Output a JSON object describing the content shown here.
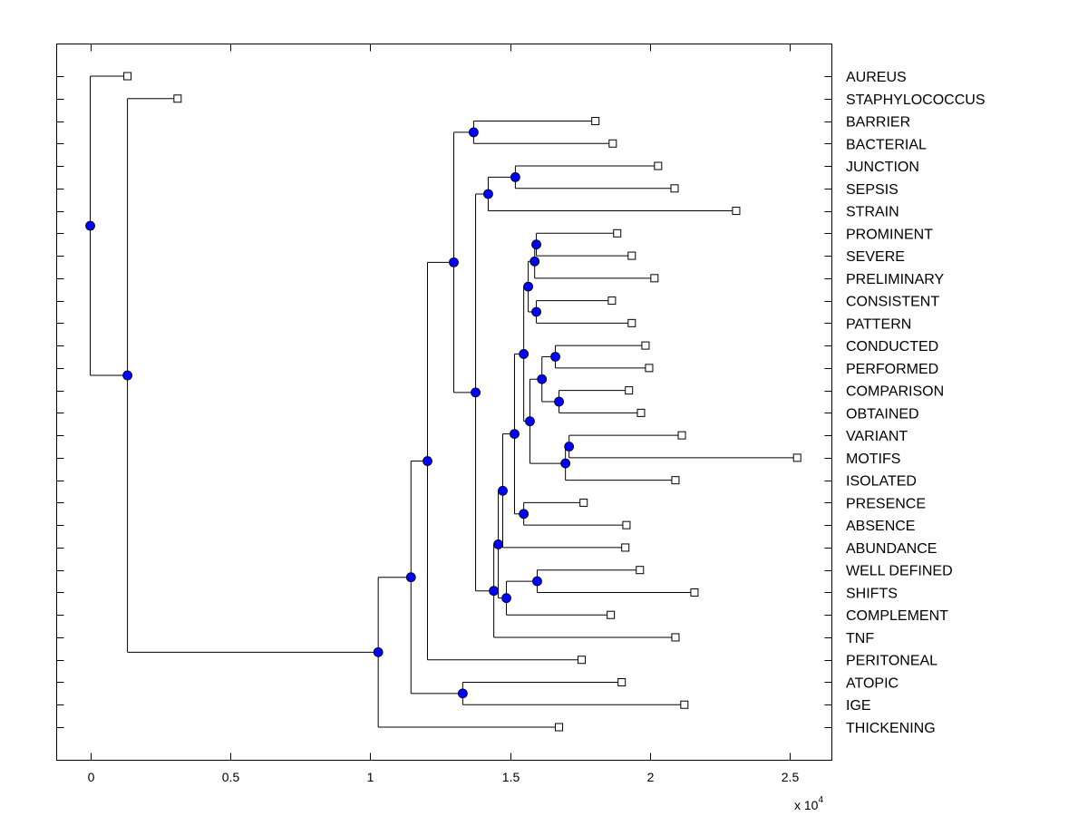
{
  "chart_data": {
    "type": "dendrogram",
    "title": "",
    "xlabel": "",
    "ylabel": "",
    "x_scale_label": "x 10",
    "x_scale_exponent": "4",
    "xlim": [
      -0.12,
      2.65
    ],
    "xticks": [
      0,
      0.5,
      1,
      1.5,
      2,
      2.5
    ],
    "xtick_labels": [
      "0",
      "0.5",
      "1",
      "1.5",
      "2",
      "2.5"
    ],
    "grid": false,
    "colors": {
      "node": "#0000ff",
      "leaf": "#ffffff",
      "line": "#000000"
    },
    "tree": {
      "h": 0,
      "children": [
        {
          "label": "AUREUS",
          "h": 0.133
        },
        {
          "h": 0.133,
          "children": [
            {
              "label": "STAPHYLOCOCCUS",
              "h": 0.312
            },
            {
              "h": 1.029,
              "children": [
                {
                  "h": 1.146,
                  "children": [
                    {
                      "h": 1.205,
                      "children": [
                        {
                          "h": 1.299,
                          "children": [
                            {
                              "h": 1.37,
                              "children": [
                                {
                                  "label": "BARRIER",
                                  "h": 1.805
                                },
                                {
                                  "label": "BACTERIAL",
                                  "h": 1.867
                                }
                              ]
                            },
                            {
                              "h": 1.377,
                              "children": [
                                {
                                  "h": 1.422,
                                  "children": [
                                    {
                                      "h": 1.519,
                                      "children": [
                                        {
                                          "label": "JUNCTION",
                                          "h": 2.029
                                        },
                                        {
                                          "label": "SEPSIS",
                                          "h": 2.088
                                        }
                                      ]
                                    },
                                    {
                                      "label": "STRAIN",
                                      "h": 2.308
                                    }
                                  ]
                                },
                                {
                                  "h": 1.442,
                                  "children": [
                                    {
                                      "h": 1.458,
                                      "children": [
                                        {
                                          "h": 1.474,
                                          "children": [
                                            {
                                              "h": 1.516,
                                              "children": [
                                                {
                                                  "h": 1.549,
                                                  "children": [
                                                    {
                                                      "h": 1.565,
                                                      "children": [
                                                        {
                                                          "h": 1.588,
                                                          "children": [
                                                            {
                                                              "h": 1.594,
                                                              "children": [
                                                                {
                                                                  "label": "PROMINENT",
                                                                  "h": 1.883
                                                                },
                                                                {
                                                                  "label": "SEVERE",
                                                                  "h": 1.935
                                                                }
                                                              ]
                                                            },
                                                            {
                                                              "label": "PRELIMINARY",
                                                              "h": 2.016
                                                            }
                                                          ]
                                                        },
                                                        {
                                                          "h": 1.594,
                                                          "children": [
                                                            {
                                                              "label": "CONSISTENT",
                                                              "h": 1.864
                                                            },
                                                            {
                                                              "label": "PATTERN",
                                                              "h": 1.935
                                                            }
                                                          ]
                                                        }
                                                      ]
                                                    },
                                                    {
                                                      "h": 1.571,
                                                      "children": [
                                                        {
                                                          "h": 1.614,
                                                          "children": [
                                                            {
                                                              "h": 1.662,
                                                              "children": [
                                                                {
                                                                  "label": "CONDUCTED",
                                                                  "h": 1.984
                                                                },
                                                                {
                                                                  "label": "PERFORMED",
                                                                  "h": 1.997
                                                                }
                                                              ]
                                                            },
                                                            {
                                                              "h": 1.675,
                                                              "children": [
                                                                {
                                                                  "label": "COMPARISON",
                                                                  "h": 1.925
                                                                },
                                                                {
                                                                  "label": "OBTAINED",
                                                                  "h": 1.968
                                                                }
                                                              ]
                                                            }
                                                          ]
                                                        },
                                                        {
                                                          "h": 1.698,
                                                          "children": [
                                                            {
                                                              "h": 1.711,
                                                              "children": [
                                                                {
                                                                  "label": "VARIANT",
                                                                  "h": 2.114
                                                                },
                                                                {
                                                                  "label": "MOTIFS",
                                                                  "h": 2.526
                                                                }
                                                              ]
                                                            },
                                                            {
                                                              "label": "ISOLATED",
                                                              "h": 2.091
                                                            }
                                                          ]
                                                        }
                                                      ]
                                                    }
                                                  ]
                                                },
                                                {
                                                  "h": 1.549,
                                                  "children": [
                                                    {
                                                      "label": "PRESENCE",
                                                      "h": 1.763
                                                    },
                                                    {
                                                      "label": "ABSENCE",
                                                      "h": 1.916
                                                    }
                                                  ]
                                                }
                                              ]
                                            },
                                            {
                                              "label": "ABUNDANCE",
                                              "h": 1.912
                                            }
                                          ]
                                        },
                                        {
                                          "h": 1.487,
                                          "children": [
                                            {
                                              "h": 1.597,
                                              "children": [
                                                {
                                                  "label": "WELL DEFINED",
                                                  "h": 1.964
                                                },
                                                {
                                                  "label": "SHIFTS",
                                                  "h": 2.159
                                                }
                                              ]
                                            },
                                            {
                                              "label": "COMPLEMENT",
                                              "h": 1.86
                                            }
                                          ]
                                        }
                                      ]
                                    },
                                    {
                                      "label": "TNF",
                                      "h": 2.091
                                    }
                                  ]
                                }
                              ]
                            }
                          ]
                        },
                        {
                          "label": "PERITONEAL",
                          "h": 1.756
                        }
                      ]
                    },
                    {
                      "h": 1.331,
                      "children": [
                        {
                          "label": "ATOPIC",
                          "h": 1.899
                        },
                        {
                          "label": "IGE",
                          "h": 2.123
                        }
                      ]
                    }
                  ]
                },
                {
                  "label": "THICKENING",
                  "h": 1.675
                }
              ]
            }
          ]
        }
      ]
    }
  }
}
